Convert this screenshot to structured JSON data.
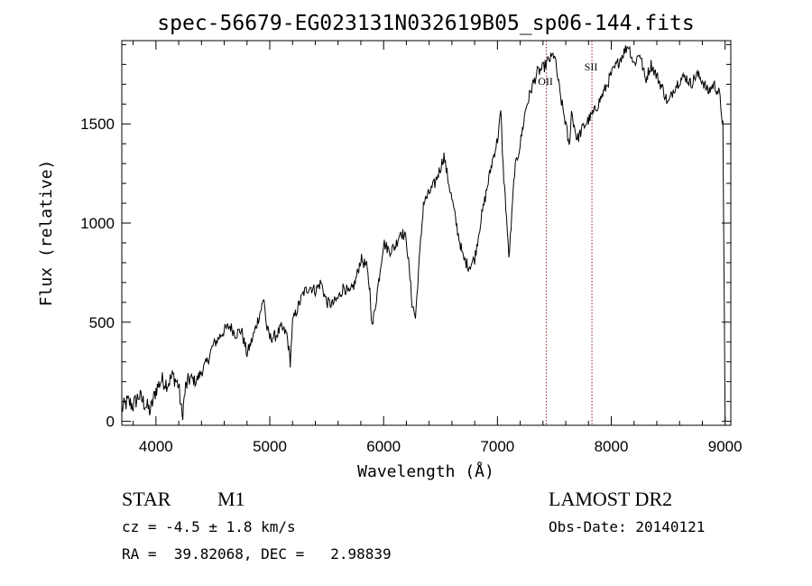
{
  "chart_data": {
    "type": "line",
    "title": "spec-56679-EG023131N032619B05_sp06-144.fits",
    "xlabel": "Wavelength (Å)",
    "ylabel": "Flux (relative)",
    "xlim": [
      3700,
      9050
    ],
    "ylim": [
      -20,
      1920
    ],
    "x_ticks": [
      4000,
      5000,
      6000,
      7000,
      8000,
      9000
    ],
    "y_ticks": [
      0,
      500,
      1000,
      1500
    ],
    "grid": false,
    "line_color": "#000000",
    "series": [
      {
        "x": [
          3700,
          3750,
          3800,
          3850,
          3900,
          3950,
          4000,
          4050,
          4100,
          4150,
          4200,
          4230,
          4260,
          4300,
          4350,
          4400,
          4450,
          4500,
          4550,
          4600,
          4650,
          4700,
          4750,
          4800,
          4850,
          4900,
          4950,
          4970,
          5000,
          5050,
          5100,
          5150,
          5180,
          5200,
          5250,
          5300,
          5350,
          5400,
          5450,
          5500,
          5550,
          5600,
          5650,
          5700,
          5750,
          5800,
          5850,
          5880,
          5900,
          5950,
          6000,
          6050,
          6100,
          6150,
          6200,
          6250,
          6280,
          6300,
          6350,
          6400,
          6450,
          6500,
          6530,
          6550,
          6600,
          6650,
          6700,
          6750,
          6800,
          6850,
          6900,
          6950,
          7000,
          7030,
          7050,
          7080,
          7100,
          7120,
          7150,
          7200,
          7250,
          7300,
          7350,
          7400,
          7450,
          7500,
          7550,
          7600,
          7630,
          7650,
          7700,
          7750,
          7800,
          7850,
          7900,
          7950,
          8000,
          8050,
          8100,
          8150,
          8200,
          8250,
          8300,
          8350,
          8400,
          8450,
          8500,
          8550,
          8600,
          8650,
          8700,
          8750,
          8800,
          8850,
          8900,
          8950,
          8980,
          9000
        ],
        "y": [
          60,
          100,
          80,
          130,
          90,
          50,
          160,
          210,
          190,
          230,
          180,
          20,
          170,
          220,
          200,
          250,
          300,
          380,
          420,
          460,
          480,
          440,
          460,
          340,
          420,
          520,
          620,
          480,
          420,
          430,
          470,
          440,
          300,
          500,
          580,
          650,
          680,
          660,
          700,
          600,
          590,
          620,
          680,
          640,
          700,
          820,
          780,
          660,
          470,
          680,
          900,
          860,
          880,
          960,
          920,
          600,
          520,
          700,
          1100,
          1150,
          1200,
          1280,
          1340,
          1270,
          1120,
          960,
          820,
          780,
          820,
          1000,
          1150,
          1300,
          1420,
          1560,
          1280,
          1030,
          820,
          980,
          1260,
          1400,
          1580,
          1680,
          1760,
          1780,
          1820,
          1850,
          1650,
          1500,
          1380,
          1560,
          1420,
          1480,
          1520,
          1560,
          1620,
          1680,
          1750,
          1800,
          1850,
          1900,
          1800,
          1860,
          1720,
          1800,
          1740,
          1680,
          1600,
          1680,
          1720,
          1740,
          1700,
          1750,
          1720,
          1660,
          1700,
          1650,
          1500,
          0
        ]
      }
    ],
    "annotations": [
      {
        "label": "OII",
        "x": 7430
      },
      {
        "label": "SII",
        "x": 7830
      }
    ]
  },
  "info": {
    "object_class": "STAR",
    "subclass": "M1",
    "survey": "LAMOST DR2",
    "cz": "cz = -4.5 ± 1.8 km/s",
    "obs_date": "Obs-Date: 20140121",
    "coords": "RA =  39.82068, DEC =   2.98839"
  }
}
